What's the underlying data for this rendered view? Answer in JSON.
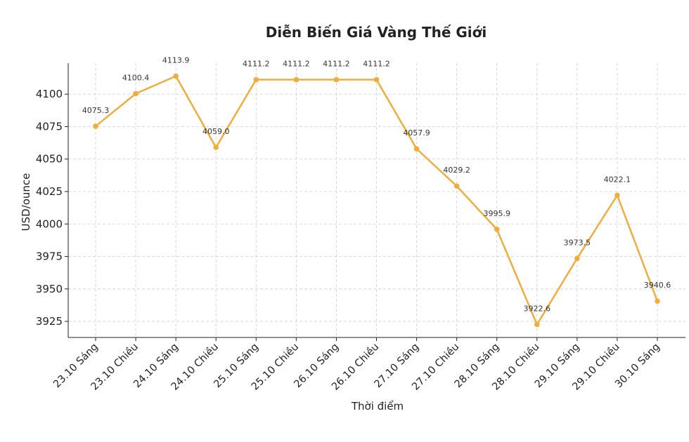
{
  "chart_data": {
    "type": "line",
    "title": "Diễn Biến Giá Vàng Thế Giới",
    "xlabel": "Thời điểm",
    "ylabel": "USD/ounce",
    "categories": [
      "23.10 Sáng",
      "23.10 Chiều",
      "24.10 Sáng",
      "24.10 Chiều",
      "25.10 Sáng",
      "25.10 Chiều",
      "26.10 Sáng",
      "26.10 Chiều",
      "27.10 Sáng",
      "27.10 Chiều",
      "28.10 Sáng",
      "28.10 Chiều",
      "29.10 Sáng",
      "29.10 Chiều",
      "30.10 Sáng"
    ],
    "series": [
      {
        "values": [
          4075.3,
          4100.4,
          4113.9,
          4059.0,
          4111.2,
          4111.2,
          4111.2,
          4111.2,
          4057.9,
          4029.2,
          3995.9,
          3922.6,
          3973.5,
          4022.1,
          3940.6
        ],
        "labels": [
          "4075.3",
          "4100.4",
          "4113.9",
          "4059.0",
          "4111.2",
          "4111.2",
          "4111.2",
          "4111.2",
          "4057.9",
          "4029.2",
          "3995.9",
          "3922.6",
          "3973.5",
          "4022.1",
          "3940.6"
        ],
        "color": "#f0ad3c"
      }
    ],
    "yticks": [
      3925,
      3950,
      3975,
      4000,
      4025,
      4050,
      4075,
      4100
    ],
    "ylim": [
      3912.6,
      4123.9
    ],
    "grid": true
  }
}
